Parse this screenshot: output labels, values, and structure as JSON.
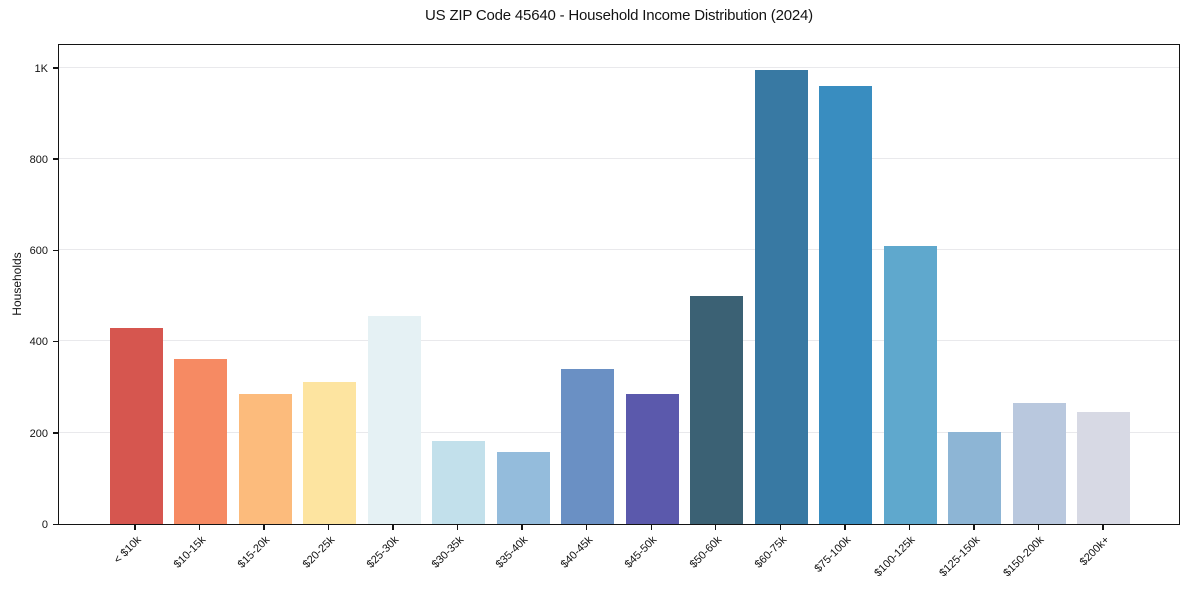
{
  "chart": {
    "title": "US ZIP Code 45640 - Household Income Distribution (2024)",
    "ylabel": "Households"
  },
  "chart_data": {
    "type": "bar",
    "title": "US ZIP Code 45640 - Household Income Distribution (2024)",
    "xlabel": "",
    "ylabel": "Households",
    "categories": [
      "< $10k",
      "$10-15k",
      "$15-20k",
      "$20-25k",
      "$25-30k",
      "$30-35k",
      "$35-40k",
      "$40-45k",
      "$45-50k",
      "$50-60k",
      "$60-75k",
      "$75-100k",
      "$100-125k",
      "$125-150k",
      "$150-200k",
      "$200k+"
    ],
    "values": [
      430,
      362,
      285,
      312,
      455,
      182,
      157,
      340,
      285,
      500,
      995,
      960,
      610,
      202,
      265,
      245
    ],
    "bar_colors": [
      "#d6564f",
      "#f68a63",
      "#fcbb7c",
      "#fde4a0",
      "#e5f1f4",
      "#c2e0eb",
      "#94bcdc",
      "#6a90c4",
      "#5b59ac",
      "#3b6174",
      "#3879a3",
      "#398dc0",
      "#5fa8cd",
      "#8db5d5",
      "#b9c8de",
      "#d7d9e4"
    ],
    "ytick_values": [
      0,
      200,
      400,
      600,
      800,
      1000
    ],
    "ytick_labels": [
      "0",
      "200",
      "400",
      "600",
      "800",
      "1K"
    ],
    "ylim": [
      0,
      1053
    ],
    "grid": "horizontal-only",
    "grid_color": "#e9e9ec",
    "legend": "none",
    "xtick_rotation_deg": 45
  }
}
